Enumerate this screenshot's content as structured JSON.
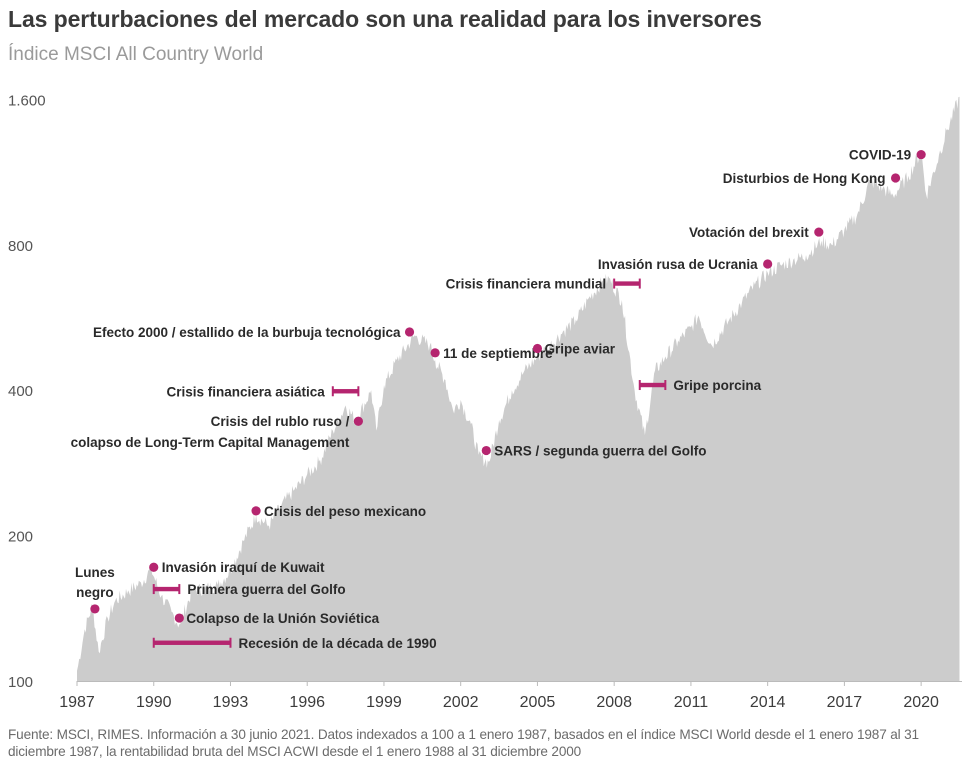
{
  "chart_data": {
    "type": "area",
    "title": "Las perturbaciones del mercado son una realidad para los inversores",
    "subtitle": "Índice MSCI All Country World",
    "xlabel": "",
    "ylabel": "",
    "yscale": "log",
    "ylim": [
      100,
      1600
    ],
    "xlim": [
      1987,
      2021.5
    ],
    "grid": false,
    "legend": "none",
    "colors": {
      "fill": "#cccccc",
      "marker": "#b5256f",
      "text": "#2a2a2a"
    },
    "y_ticks": [
      {
        "value": 100,
        "label": "100"
      },
      {
        "value": 200,
        "label": "200"
      },
      {
        "value": 400,
        "label": "400"
      },
      {
        "value": 800,
        "label": "800"
      },
      {
        "value": 1600,
        "label": "1.600"
      }
    ],
    "x_ticks": [
      {
        "value": 1987,
        "label": "1987"
      },
      {
        "value": 1990,
        "label": "1990"
      },
      {
        "value": 1993,
        "label": "1993"
      },
      {
        "value": 1996,
        "label": "1996"
      },
      {
        "value": 1999,
        "label": "1999"
      },
      {
        "value": 2002,
        "label": "2002"
      },
      {
        "value": 2005,
        "label": "2005"
      },
      {
        "value": 2008,
        "label": "2008"
      },
      {
        "value": 2011,
        "label": "2011"
      },
      {
        "value": 2014,
        "label": "2014"
      },
      {
        "value": 2017,
        "label": "2017"
      },
      {
        "value": 2020,
        "label": "2020"
      }
    ],
    "series": [
      {
        "name": "Índice MSCI All Country World",
        "x": [
          1987.0,
          1987.3,
          1987.6,
          1987.85,
          1988.2,
          1988.5,
          1989.0,
          1989.5,
          1989.9,
          1990.3,
          1990.7,
          1991.0,
          1991.5,
          1992.0,
          1992.5,
          1993.0,
          1993.5,
          1994.0,
          1994.5,
          1995.0,
          1995.5,
          1996.0,
          1996.5,
          1997.0,
          1997.5,
          1997.9,
          1998.5,
          1998.7,
          1999.0,
          1999.5,
          2000.2,
          2000.8,
          2001.0,
          2001.4,
          2001.7,
          2002.0,
          2002.4,
          2002.7,
          2003.1,
          2003.5,
          2004.0,
          2004.5,
          2005.0,
          2005.5,
          2006.0,
          2006.5,
          2007.0,
          2007.5,
          2007.8,
          2008.3,
          2008.8,
          2009.2,
          2009.6,
          2010.0,
          2010.5,
          2011.0,
          2011.3,
          2011.8,
          2012.5,
          2013.0,
          2013.5,
          2014.0,
          2014.5,
          2015.0,
          2015.5,
          2016.1,
          2016.5,
          2017.0,
          2017.5,
          2018.0,
          2018.5,
          2018.9,
          2019.5,
          2020.0,
          2020.2,
          2020.7,
          2021.0,
          2021.5
        ],
        "values": [
          105,
          128,
          144,
          115,
          135,
          147,
          154,
          160,
          171,
          150,
          139,
          131,
          154,
          156,
          158,
          170,
          195,
          221,
          210,
          232,
          249,
          268,
          287,
          330,
          372,
          347,
          400,
          330,
          410,
          462,
          520,
          497,
          462,
          420,
          364,
          382,
          340,
          294,
          284,
          347,
          400,
          440,
          470,
          497,
          530,
          560,
          620,
          670,
          683,
          615,
          400,
          323,
          440,
          470,
          507,
          540,
          571,
          497,
          560,
          610,
          661,
          700,
          727,
          745,
          762,
          816,
          800,
          860,
          924,
          1088,
          1050,
          1014,
          1112,
          1254,
          1014,
          1229,
          1380,
          1620
        ]
      }
    ],
    "annotations": [
      {
        "kind": "point",
        "x": 1987.7,
        "y": 141,
        "label_lines": [
          "Lunes",
          "negro"
        ]
      },
      {
        "kind": "point",
        "x": 1990.0,
        "y": 172,
        "label_lines": [
          "Invasión iraquí de Kuwait"
        ]
      },
      {
        "kind": "range",
        "x_start": 1990.0,
        "x_end": 1991.0,
        "y": 155,
        "label_lines": [
          "Primera guerra del Golfo"
        ]
      },
      {
        "kind": "point",
        "x": 1991.0,
        "y": 135,
        "label_lines": [
          "Colapso de la Unión Soviética"
        ]
      },
      {
        "kind": "range",
        "x_start": 1990.0,
        "x_end": 1993.0,
        "y": 120,
        "label_lines": [
          "Recesión de la década de 1990"
        ]
      },
      {
        "kind": "point",
        "x": 1994.0,
        "y": 225,
        "label_lines": [
          "Crisis del peso mexicano"
        ]
      },
      {
        "kind": "point",
        "x": 1998.0,
        "y": 345,
        "label_lines": [
          "Crisis del rublo ruso /",
          "colapso de Long-Term Capital Management"
        ]
      },
      {
        "kind": "range",
        "x_start": 1997.0,
        "x_end": 1998.0,
        "y": 398,
        "label_lines": [
          "Crisis financiera asiática"
        ]
      },
      {
        "kind": "point",
        "x": 2000.0,
        "y": 528,
        "label_lines": [
          "Efecto 2000 / estallido de la burbuja tecnológica"
        ]
      },
      {
        "kind": "point",
        "x": 2001.0,
        "y": 478,
        "label_lines": [
          "11 de septiembre"
        ]
      },
      {
        "kind": "point",
        "x": 2003.0,
        "y": 300,
        "label_lines": [
          "SARS / segunda guerra del Golfo"
        ]
      },
      {
        "kind": "point",
        "x": 2005.0,
        "y": 488,
        "label_lines": [
          "Gripe aviar"
        ]
      },
      {
        "kind": "range",
        "x_start": 2008.0,
        "x_end": 2009.0,
        "y": 665,
        "label_lines": [
          "Crisis financiera mundial"
        ]
      },
      {
        "kind": "range",
        "x_start": 2009.0,
        "x_end": 2010.0,
        "y": 410,
        "label_lines": [
          "Gripe porcina"
        ]
      },
      {
        "kind": "point",
        "x": 2014.0,
        "y": 730,
        "label_lines": [
          "Invasión rusa de Ucrania"
        ]
      },
      {
        "kind": "point",
        "x": 2016.0,
        "y": 850,
        "label_lines": [
          "Votación del brexit"
        ]
      },
      {
        "kind": "point",
        "x": 2019.0,
        "y": 1100,
        "label_lines": [
          "Disturbios de Hong Kong"
        ]
      },
      {
        "kind": "point",
        "x": 2020.0,
        "y": 1230,
        "label_lines": [
          "COVID-19"
        ]
      }
    ],
    "footnote": "Fuente: MSCI, RIMES. Información a 30 junio 2021. Datos indexados a 100 a 1 enero 1987, basados en el índice MSCI World desde el 1 enero 1987 al 31 diciembre 1987, la rentabilidad bruta del MSCI ACWI desde el 1 enero 1988 al 31 diciembre 2000"
  }
}
